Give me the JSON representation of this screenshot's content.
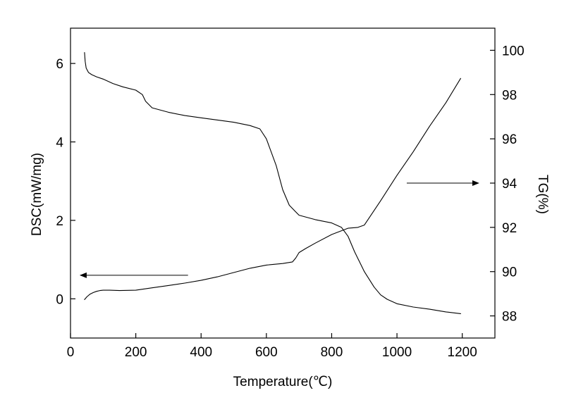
{
  "chart_data": {
    "type": "line",
    "title": "",
    "xlabel": "Temperature(℃)",
    "ylabel_left": "DSC(mW/mg)",
    "ylabel_right": "TG(%)",
    "xlim": [
      0,
      1300
    ],
    "ylim_left": [
      -1,
      6.9
    ],
    "ylim_right": [
      87,
      101
    ],
    "x_ticks": [
      0,
      200,
      400,
      600,
      800,
      1000,
      1200
    ],
    "y_left_ticks": [
      0,
      2,
      4,
      6
    ],
    "y_right_ticks": [
      88,
      90,
      92,
      94,
      96,
      98,
      100
    ],
    "grid": false,
    "legend": "none",
    "line_color": "#000000",
    "series": [
      {
        "axis": "left",
        "x": [
          43,
          50,
          60,
          70,
          80,
          90,
          100,
          120,
          150,
          200,
          250,
          300,
          350,
          400,
          450,
          500,
          550,
          600,
          650,
          680,
          690,
          700,
          720,
          750,
          800,
          850,
          880,
          900,
          950,
          1000,
          1050,
          1100,
          1150,
          1195
        ],
        "y": [
          -0.02,
          0.05,
          0.12,
          0.16,
          0.19,
          0.21,
          0.22,
          0.22,
          0.21,
          0.22,
          0.28,
          0.34,
          0.4,
          0.47,
          0.56,
          0.67,
          0.78,
          0.86,
          0.9,
          0.94,
          1.04,
          1.18,
          1.28,
          1.42,
          1.64,
          1.8,
          1.82,
          1.88,
          2.5,
          3.15,
          3.75,
          4.4,
          5.0,
          5.62
        ]
      },
      {
        "axis": "right",
        "x": [
          43,
          45,
          48,
          55,
          65,
          80,
          100,
          130,
          160,
          200,
          220,
          230,
          250,
          300,
          350,
          400,
          450,
          500,
          550,
          580,
          600,
          630,
          650,
          670,
          690,
          700,
          750,
          800,
          830,
          850,
          870,
          900,
          930,
          950,
          970,
          1000,
          1050,
          1100,
          1150,
          1195
        ],
        "y": [
          99.9,
          99.5,
          99.2,
          99.0,
          98.9,
          98.8,
          98.7,
          98.5,
          98.35,
          98.2,
          98.0,
          97.7,
          97.4,
          97.2,
          97.05,
          96.95,
          96.85,
          96.75,
          96.6,
          96.45,
          96.0,
          94.8,
          93.7,
          93.0,
          92.7,
          92.55,
          92.35,
          92.2,
          92.0,
          91.6,
          90.9,
          90.0,
          89.3,
          88.95,
          88.75,
          88.55,
          88.4,
          88.3,
          88.18,
          88.1
        ]
      }
    ],
    "annotations": [
      {
        "type": "arrow",
        "direction": "left",
        "axis": "left",
        "x_from": 360,
        "x_to": 30,
        "y": 0.6,
        "points_to": "left-axis"
      },
      {
        "type": "arrow",
        "direction": "right",
        "axis": "right",
        "x_from": 1030,
        "x_to": 1250,
        "y": 94.0,
        "points_to": "right-axis"
      }
    ]
  }
}
